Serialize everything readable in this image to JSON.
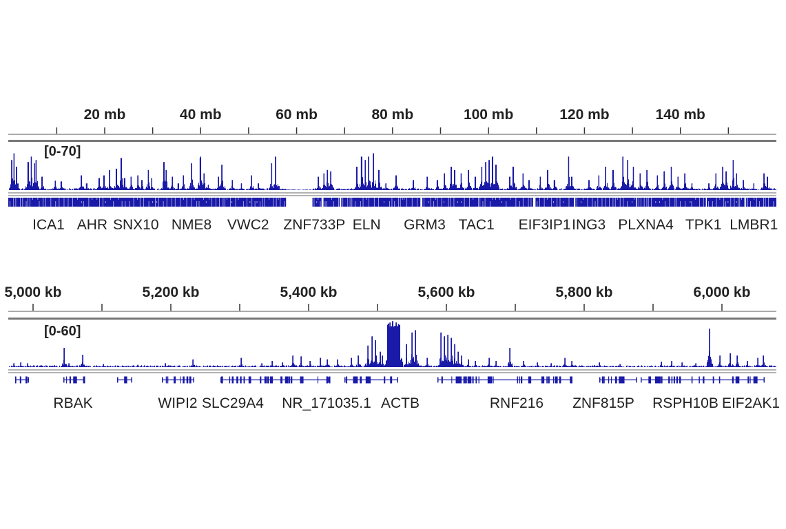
{
  "colors": {
    "signal": "#1a1aa8",
    "ruler": "#555555",
    "separator": "#999999"
  },
  "chart_data": [
    {
      "type": "area",
      "x_unit": "mb",
      "xlim": [
        -0.1,
        160
      ],
      "ticks": [
        10,
        20,
        30,
        40,
        50,
        60,
        70,
        80,
        90,
        100,
        110,
        120,
        130,
        140,
        150
      ],
      "tick_labels": [
        {
          "value": 20,
          "label": "20 mb"
        },
        {
          "value": 40,
          "label": "40 mb"
        },
        {
          "value": 60,
          "label": "60 mb"
        },
        {
          "value": 80,
          "label": "80 mb"
        },
        {
          "value": 100,
          "label": "100 mb"
        },
        {
          "value": 120,
          "label": "120 mb"
        },
        {
          "value": 140,
          "label": "140 mb"
        }
      ],
      "range_label": "[0-70]",
      "ylim": [
        0,
        70
      ],
      "peaks": [
        [
          0.6,
          45
        ],
        [
          1.1,
          55
        ],
        [
          1.6,
          35
        ],
        [
          4.0,
          42
        ],
        [
          4.7,
          50
        ],
        [
          5.4,
          40
        ],
        [
          5.7,
          45
        ],
        [
          6.9,
          20
        ],
        [
          9.7,
          14
        ],
        [
          10.9,
          13
        ],
        [
          15.1,
          22
        ],
        [
          16.2,
          10
        ],
        [
          18.8,
          18
        ],
        [
          19.8,
          22
        ],
        [
          21.0,
          30
        ],
        [
          22.4,
          32
        ],
        [
          23.4,
          48
        ],
        [
          24.1,
          18
        ],
        [
          25.5,
          20
        ],
        [
          26.9,
          22
        ],
        [
          27.7,
          15
        ],
        [
          29.1,
          30
        ],
        [
          29.8,
          18
        ],
        [
          32.3,
          42
        ],
        [
          32.8,
          30
        ],
        [
          34.1,
          20
        ],
        [
          35.3,
          10
        ],
        [
          36.4,
          22
        ],
        [
          38.1,
          40
        ],
        [
          39.9,
          48
        ],
        [
          40.0,
          50
        ],
        [
          40.7,
          25
        ],
        [
          41.6,
          8
        ],
        [
          43.7,
          20
        ],
        [
          44.4,
          38
        ],
        [
          46.6,
          15
        ],
        [
          48.5,
          10
        ],
        [
          50.6,
          22
        ],
        [
          52.0,
          10
        ],
        [
          54.8,
          40
        ],
        [
          55.6,
          50
        ],
        [
          56.3,
          6
        ],
        [
          64.5,
          20
        ],
        [
          65.7,
          25
        ],
        [
          66.4,
          30
        ],
        [
          67.1,
          28
        ],
        [
          72.5,
          35
        ],
        [
          73.5,
          50
        ],
        [
          74.3,
          45
        ],
        [
          75.0,
          50
        ],
        [
          76.0,
          55
        ],
        [
          77.1,
          30
        ],
        [
          78.6,
          10
        ],
        [
          80.7,
          22
        ],
        [
          84.3,
          15
        ],
        [
          87.2,
          20
        ],
        [
          89.3,
          15
        ],
        [
          90.8,
          25
        ],
        [
          92.2,
          35
        ],
        [
          92.9,
          30
        ],
        [
          94.3,
          25
        ],
        [
          95.8,
          30
        ],
        [
          97.2,
          20
        ],
        [
          98.6,
          35
        ],
        [
          99.4,
          42
        ],
        [
          100.1,
          45
        ],
        [
          100.8,
          50
        ],
        [
          101.5,
          38
        ],
        [
          104.4,
          20
        ],
        [
          105.1,
          35
        ],
        [
          107.2,
          25
        ],
        [
          108.4,
          15
        ],
        [
          110.8,
          20
        ],
        [
          112.3,
          30
        ],
        [
          113.7,
          15
        ],
        [
          116.7,
          50
        ],
        [
          117.3,
          20
        ],
        [
          120.9,
          15
        ],
        [
          123.0,
          22
        ],
        [
          124.4,
          35
        ],
        [
          125.9,
          30
        ],
        [
          128.0,
          50
        ],
        [
          129.0,
          45
        ],
        [
          130.2,
          35
        ],
        [
          131.6,
          25
        ],
        [
          133.0,
          30
        ],
        [
          135.2,
          22
        ],
        [
          136.6,
          28
        ],
        [
          138.1,
          35
        ],
        [
          139.5,
          20
        ],
        [
          140.9,
          25
        ],
        [
          142.4,
          10
        ],
        [
          145.9,
          10
        ],
        [
          147.4,
          25
        ],
        [
          148.8,
          35
        ],
        [
          149.5,
          28
        ],
        [
          151.0,
          45
        ],
        [
          151.7,
          25
        ],
        [
          153.1,
          15
        ],
        [
          155.3,
          10
        ],
        [
          157.4,
          25
        ],
        [
          158.1,
          20
        ]
      ],
      "gene_band_gaps": [
        [
          57.8,
          63.3
        ],
        [
          65.2,
          65.6
        ],
        [
          69.0,
          69.3
        ],
        [
          85.8,
          86.2
        ],
        [
          109.3,
          109.8
        ],
        [
          117.8,
          118.1
        ],
        [
          130.8,
          131.0
        ],
        [
          145.3,
          145.5
        ],
        [
          153.5,
          153.7
        ]
      ],
      "genes": [
        {
          "name": "ICA1",
          "pos": 8.3
        },
        {
          "name": "AHR",
          "pos": 17.4
        },
        {
          "name": "SNX10",
          "pos": 26.5
        },
        {
          "name": "NME8",
          "pos": 38.1
        },
        {
          "name": "VWC2",
          "pos": 49.9
        },
        {
          "name": "ZNF733P",
          "pos": 63.7
        },
        {
          "name": "ELN",
          "pos": 74.6
        },
        {
          "name": "GRM3",
          "pos": 86.7
        },
        {
          "name": "TAC1",
          "pos": 97.5
        },
        {
          "name": "EIF3IP1",
          "pos": 111.7
        },
        {
          "name": "ING3",
          "pos": 120.9
        },
        {
          "name": "PLXNA4",
          "pos": 132.8
        },
        {
          "name": "TPK1",
          "pos": 144.8
        },
        {
          "name": "LMBR1",
          "pos": 155.3
        }
      ]
    },
    {
      "type": "area",
      "x_unit": "kb",
      "xlim": [
        4964,
        6079
      ],
      "ticks": [
        5000,
        5100,
        5200,
        5300,
        5400,
        5500,
        5600,
        5700,
        5800,
        5900,
        6000
      ],
      "tick_labels": [
        {
          "value": 5000,
          "label": "5,000 kb"
        },
        {
          "value": 5200,
          "label": "5,200 kb"
        },
        {
          "value": 5400,
          "label": "5,400 kb"
        },
        {
          "value": 5600,
          "label": "5,600 kb"
        },
        {
          "value": 5800,
          "label": "5,800 kb"
        },
        {
          "value": 6000,
          "label": "6,000 kb"
        }
      ],
      "range_label": "[0-60]",
      "ylim": [
        0,
        60
      ],
      "peaks": [
        [
          4972,
          5
        ],
        [
          4982,
          6
        ],
        [
          4992,
          5
        ],
        [
          5045,
          25
        ],
        [
          5052,
          5
        ],
        [
          5072,
          16
        ],
        [
          5102,
          4
        ],
        [
          5152,
          3
        ],
        [
          5192,
          5
        ],
        [
          5232,
          10
        ],
        [
          5302,
          12
        ],
        [
          5332,
          5
        ],
        [
          5347,
          8
        ],
        [
          5362,
          6
        ],
        [
          5377,
          15
        ],
        [
          5389,
          14
        ],
        [
          5402,
          8
        ],
        [
          5417,
          12
        ],
        [
          5427,
          10
        ],
        [
          5442,
          10
        ],
        [
          5462,
          12
        ],
        [
          5472,
          15
        ],
        [
          5486,
          28
        ],
        [
          5492,
          40
        ],
        [
          5497,
          35
        ],
        [
          5504,
          20
        ],
        [
          5507,
          15
        ],
        [
          5515,
          50
        ],
        [
          5518,
          58
        ],
        [
          5522,
          60
        ],
        [
          5527,
          58
        ],
        [
          5532,
          55
        ],
        [
          5542,
          30
        ],
        [
          5550,
          45
        ],
        [
          5555,
          48
        ],
        [
          5572,
          12
        ],
        [
          5592,
          45
        ],
        [
          5597,
          40
        ],
        [
          5602,
          42
        ],
        [
          5607,
          38
        ],
        [
          5612,
          30
        ],
        [
          5617,
          20
        ],
        [
          5622,
          15
        ],
        [
          5632,
          10
        ],
        [
          5642,
          8
        ],
        [
          5662,
          12
        ],
        [
          5672,
          8
        ],
        [
          5692,
          25
        ],
        [
          5712,
          8
        ],
        [
          5732,
          6
        ],
        [
          5752,
          5
        ],
        [
          5772,
          12
        ],
        [
          5782,
          8
        ],
        [
          5822,
          6
        ],
        [
          5852,
          4
        ],
        [
          5912,
          7
        ],
        [
          5927,
          8
        ],
        [
          5942,
          6
        ],
        [
          5962,
          5
        ],
        [
          5982,
          50
        ],
        [
          5997,
          15
        ],
        [
          6012,
          18
        ],
        [
          6022,
          15
        ],
        [
          6037,
          8
        ],
        [
          6052,
          12
        ],
        [
          6060,
          15
        ]
      ],
      "gene_models": [
        [
          4974,
          4994
        ],
        [
          5044,
          5074
        ],
        [
          5122,
          5144
        ],
        [
          5187,
          5234
        ],
        [
          5272,
          5430
        ],
        [
          5452,
          5530
        ],
        [
          5587,
          5782
        ],
        [
          5822,
          5877
        ],
        [
          5882,
          6062
        ]
      ],
      "genes": [
        {
          "name": "RBAK",
          "pos": 5058
        },
        {
          "name": "WIPI2",
          "pos": 5210
        },
        {
          "name": "SLC29A4",
          "pos": 5290
        },
        {
          "name": "NR_171035.1",
          "pos": 5426
        },
        {
          "name": "ACTB",
          "pos": 5533
        },
        {
          "name": "RNF216",
          "pos": 5702
        },
        {
          "name": "ZNF815P",
          "pos": 5828
        },
        {
          "name": "RSPH10B",
          "pos": 5947
        },
        {
          "name": "EIF2AK1",
          "pos": 6042
        }
      ]
    }
  ]
}
